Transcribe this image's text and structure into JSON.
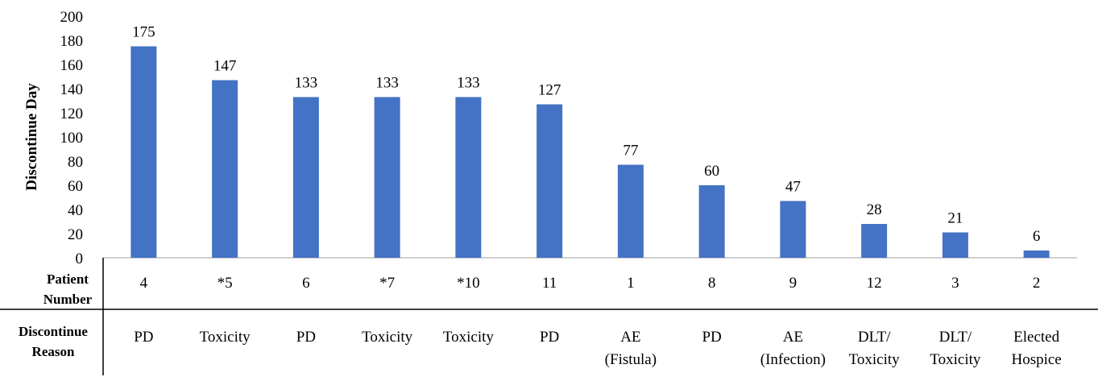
{
  "chart_data": {
    "type": "bar",
    "ylabel": "Discontinue Day",
    "ylim": [
      0,
      200
    ],
    "yticks": [
      0,
      20,
      40,
      60,
      80,
      100,
      120,
      140,
      160,
      180,
      200
    ],
    "grid": false,
    "bar_color": "#4472C4",
    "values": [
      175,
      147,
      133,
      133,
      133,
      127,
      77,
      60,
      47,
      28,
      21,
      6
    ],
    "patient_numbers": [
      "4",
      "*5",
      "6",
      "*7",
      "*10",
      "11",
      "1",
      "8",
      "9",
      "12",
      "3",
      "2"
    ],
    "discontinue_reasons": [
      [
        "PD"
      ],
      [
        "Toxicity"
      ],
      [
        "PD"
      ],
      [
        "Toxicity"
      ],
      [
        "Toxicity"
      ],
      [
        "PD"
      ],
      [
        "AE",
        "(Fistula)"
      ],
      [
        "PD"
      ],
      [
        "AE",
        "(Infection)"
      ],
      [
        "DLT/",
        "Toxicity"
      ],
      [
        "DLT/",
        "Toxicity"
      ],
      [
        "Elected",
        "Hospice"
      ]
    ],
    "row_headers": {
      "patient_number": [
        "Patient",
        "Number"
      ],
      "discontinue_reason": [
        "Discontinue",
        "Reason"
      ]
    }
  }
}
